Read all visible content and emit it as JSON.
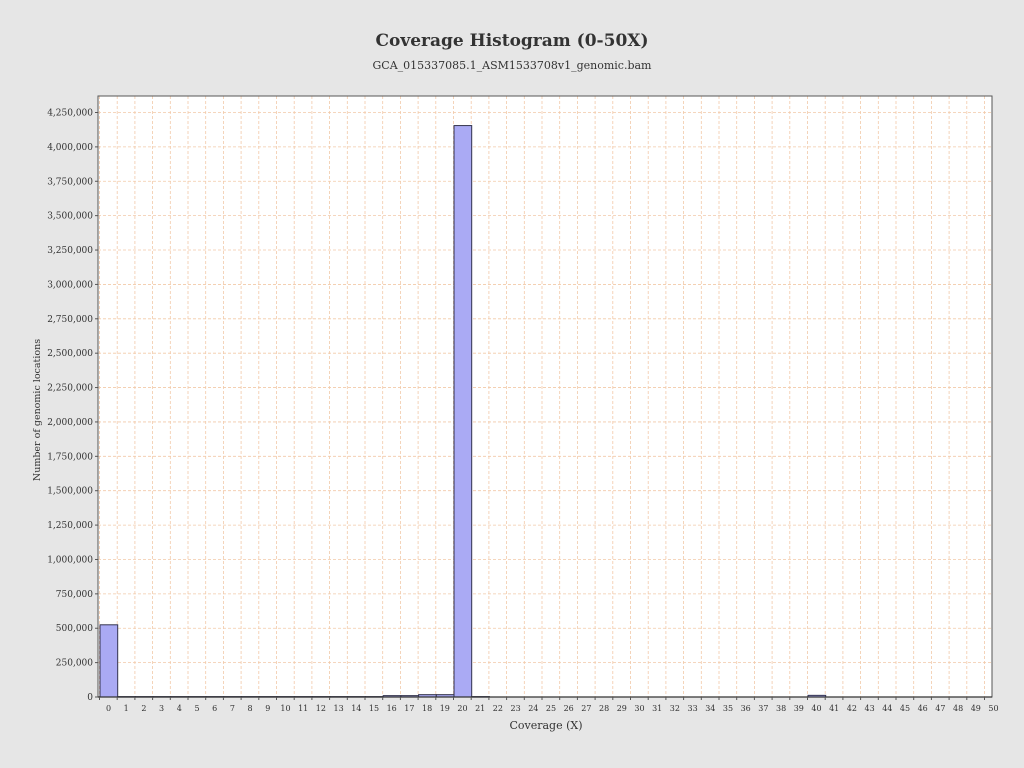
{
  "chart_data": {
    "type": "bar",
    "title": "Coverage Histogram (0-50X)",
    "subtitle": "GCA_015337085.1_ASM1533708v1_genomic.bam",
    "xlabel": "Coverage (X)",
    "ylabel": "Number of genomic locations",
    "categories": [
      "0",
      "1",
      "2",
      "3",
      "4",
      "5",
      "6",
      "7",
      "8",
      "9",
      "10",
      "11",
      "12",
      "13",
      "14",
      "15",
      "16",
      "17",
      "18",
      "19",
      "20",
      "21",
      "22",
      "23",
      "24",
      "25",
      "26",
      "27",
      "28",
      "29",
      "30",
      "31",
      "32",
      "33",
      "34",
      "35",
      "36",
      "37",
      "38",
      "39",
      "40",
      "41",
      "42",
      "43",
      "44",
      "45",
      "46",
      "47",
      "48",
      "49",
      "50"
    ],
    "values": [
      525000,
      3000,
      3000,
      3000,
      3000,
      3000,
      3000,
      3000,
      3000,
      3000,
      3000,
      3000,
      3000,
      3000,
      3000,
      3000,
      10000,
      10000,
      17000,
      17000,
      4155000,
      3000,
      0,
      0,
      0,
      0,
      0,
      0,
      0,
      0,
      0,
      0,
      0,
      0,
      0,
      0,
      0,
      0,
      0,
      0,
      12000,
      0,
      0,
      0,
      0,
      0,
      0,
      0,
      0,
      0,
      0
    ],
    "ylim": [
      0,
      4370000
    ],
    "yticks": [
      0,
      250000,
      500000,
      750000,
      1000000,
      1250000,
      1500000,
      1750000,
      2000000,
      2250000,
      2500000,
      2750000,
      3000000,
      3250000,
      3500000,
      3750000,
      4000000,
      4250000
    ],
    "ytick_labels": [
      "0",
      "250,000",
      "500,000",
      "750,000",
      "1,000,000",
      "1,250,000",
      "1,500,000",
      "1,750,000",
      "2,000,000",
      "2,250,000",
      "2,500,000",
      "2,750,000",
      "3,000,000",
      "3,250,000",
      "3,500,000",
      "3,750,000",
      "4,000,000",
      "4,250,000"
    ],
    "grid": true,
    "colors": {
      "bar_fill": "#aaaaf4",
      "bar_stroke": "#33334d",
      "plot_background": "#ffffff",
      "gridline": "#f2c9a8",
      "page_background": "#e6e6e6"
    }
  }
}
